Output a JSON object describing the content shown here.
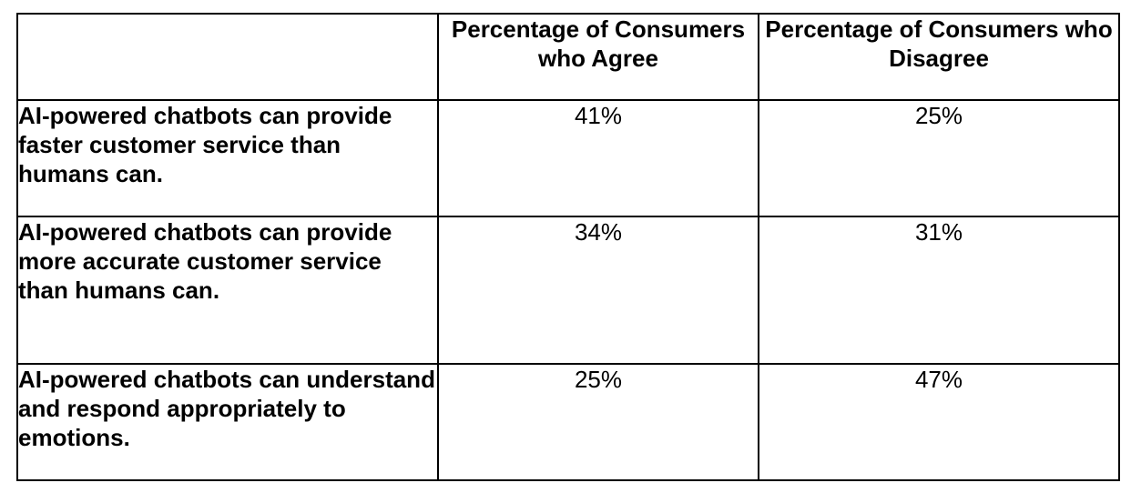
{
  "table": {
    "headers": [
      "",
      "Percentage of Consumers who Agree",
      "Percentage of Consumers who Disagree"
    ],
    "rows": [
      {
        "statement": "AI-powered chatbots can provide faster customer service than humans can.",
        "agree": "41%",
        "disagree": "25%"
      },
      {
        "statement": "AI-powered chatbots can provide more accurate customer service than humans can.",
        "agree": "34%",
        "disagree": "31%"
      },
      {
        "statement": "AI-powered chatbots can understand and respond appropriately to emotions.",
        "agree": "25%",
        "disagree": "47%"
      }
    ]
  }
}
